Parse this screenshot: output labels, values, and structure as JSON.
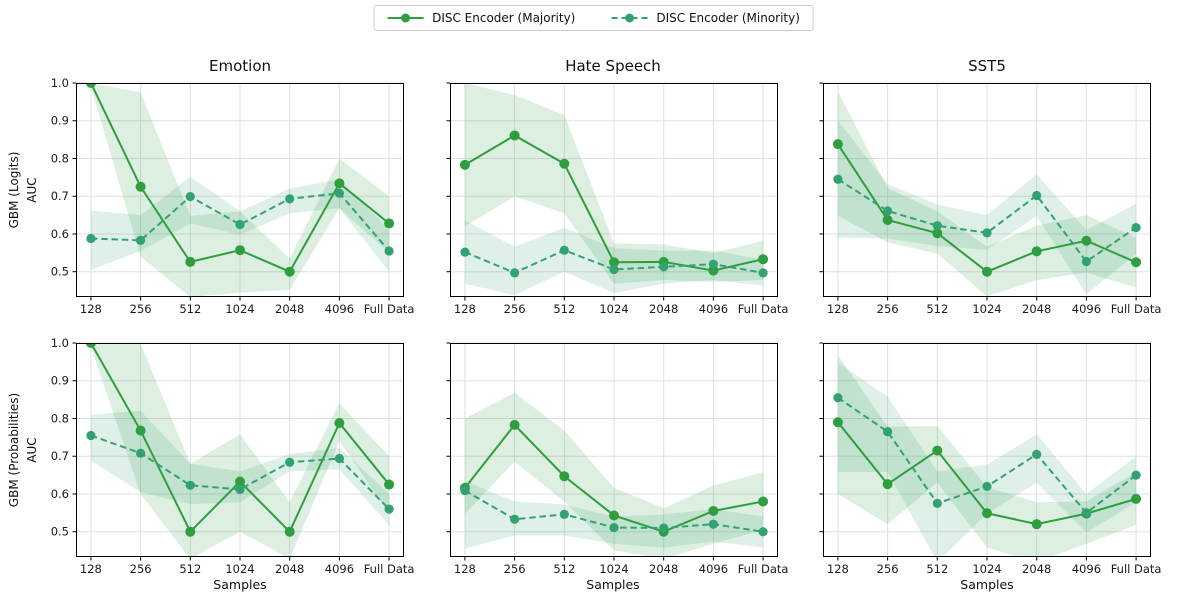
{
  "figure": {
    "legend": {
      "items": [
        {
          "label": "DISC Encoder (Majority)",
          "color": "#2e9e3e",
          "style": "solid"
        },
        {
          "label": "DISC Encoder (Minority)",
          "color": "#33a273",
          "style": "dashed"
        }
      ]
    },
    "col_titles": [
      "Emotion",
      "Hate Speech",
      "SST5"
    ],
    "rows": [
      {
        "ylabel_line1": "GBM (Logits)",
        "ylabel_line2": "AUC"
      },
      {
        "ylabel_line1": "GBM (Probabilities)",
        "ylabel_line2": "AUC"
      }
    ],
    "axis": {
      "x_ticklabels": [
        "128",
        "256",
        "512",
        "1024",
        "2048",
        "4096",
        "Full Data"
      ],
      "y_ticks": [
        0.5,
        0.6,
        0.7,
        0.8,
        0.9,
        1.0
      ],
      "ylim": [
        0.433,
        1.0
      ],
      "xlabel": "Samples",
      "grid_color": "#e0e0e0",
      "spine_color": "#000000",
      "band_opacity": 0.16
    }
  },
  "chart_data": [
    {
      "id": "emotion-logits",
      "type": "line",
      "row": 0,
      "col": 0,
      "title": "Emotion",
      "ylabel": "GBM (Logits) AUC",
      "categories": [
        "128",
        "256",
        "512",
        "1024",
        "2048",
        "4096",
        "Full Data"
      ],
      "ylim": [
        0.433,
        1.0
      ],
      "grid": true,
      "legend_position": "top-center",
      "series": [
        {
          "name": "DISC Encoder (Majority)",
          "color": "#2e9e3e",
          "dash": false,
          "values": [
            1.0,
            0.725,
            0.526,
            0.557,
            0.5,
            0.734,
            0.628
          ],
          "band_lo": [
            0.99,
            0.54,
            0.433,
            0.445,
            0.452,
            0.668,
            0.55
          ],
          "band_hi": [
            1.0,
            0.975,
            0.648,
            0.66,
            0.535,
            0.8,
            0.7
          ]
        },
        {
          "name": "DISC Encoder (Minority)",
          "color": "#33a273",
          "dash": true,
          "values": [
            0.588,
            0.583,
            0.699,
            0.625,
            0.693,
            0.708,
            0.555
          ],
          "band_lo": [
            0.505,
            0.555,
            0.628,
            0.598,
            0.655,
            0.668,
            0.5
          ],
          "band_hi": [
            0.662,
            0.65,
            0.752,
            0.66,
            0.72,
            0.745,
            0.61
          ]
        }
      ]
    },
    {
      "id": "hatespeech-logits",
      "type": "line",
      "row": 0,
      "col": 1,
      "title": "Hate Speech",
      "ylabel": "GBM (Logits) AUC",
      "categories": [
        "128",
        "256",
        "512",
        "1024",
        "2048",
        "4096",
        "Full Data"
      ],
      "ylim": [
        0.433,
        1.0
      ],
      "grid": true,
      "legend_position": "top-center",
      "series": [
        {
          "name": "DISC Encoder (Majority)",
          "color": "#2e9e3e",
          "dash": false,
          "values": [
            0.783,
            0.861,
            0.786,
            0.525,
            0.526,
            0.503,
            0.533
          ],
          "band_lo": [
            0.62,
            0.7,
            0.655,
            0.468,
            0.478,
            0.473,
            0.478
          ],
          "band_hi": [
            1.0,
            0.968,
            0.915,
            0.575,
            0.572,
            0.55,
            0.582
          ]
        },
        {
          "name": "DISC Encoder (Minority)",
          "color": "#33a273",
          "dash": true,
          "values": [
            0.552,
            0.497,
            0.557,
            0.506,
            0.513,
            0.52,
            0.497
          ],
          "band_lo": [
            0.468,
            0.438,
            0.5,
            0.444,
            0.468,
            0.478,
            0.463
          ],
          "band_hi": [
            0.636,
            0.566,
            0.616,
            0.562,
            0.556,
            0.556,
            0.532
          ]
        }
      ]
    },
    {
      "id": "sst5-logits",
      "type": "line",
      "row": 0,
      "col": 2,
      "title": "SST5",
      "ylabel": "GBM (Logits) AUC",
      "categories": [
        "128",
        "256",
        "512",
        "1024",
        "2048",
        "4096",
        "Full Data"
      ],
      "ylim": [
        0.433,
        1.0
      ],
      "grid": true,
      "legend_position": "top-center",
      "series": [
        {
          "name": "DISC Encoder (Majority)",
          "color": "#2e9e3e",
          "dash": false,
          "values": [
            0.838,
            0.637,
            0.602,
            0.5,
            0.554,
            0.582,
            0.525
          ],
          "band_lo": [
            0.648,
            0.578,
            0.548,
            0.435,
            0.478,
            0.498,
            0.458
          ],
          "band_hi": [
            0.978,
            0.722,
            0.66,
            0.566,
            0.622,
            0.65,
            0.59
          ]
        },
        {
          "name": "DISC Encoder (Minority)",
          "color": "#33a273",
          "dash": true,
          "values": [
            0.745,
            0.661,
            0.622,
            0.603,
            0.702,
            0.527,
            0.617
          ],
          "band_lo": [
            0.59,
            0.588,
            0.568,
            0.558,
            0.648,
            0.44,
            0.548
          ],
          "band_hi": [
            0.9,
            0.732,
            0.678,
            0.65,
            0.758,
            0.61,
            0.68
          ]
        }
      ]
    },
    {
      "id": "emotion-probabilities",
      "type": "line",
      "row": 1,
      "col": 0,
      "title": "Emotion",
      "ylabel": "GBM (Probabilities) AUC",
      "xlabel": "Samples",
      "categories": [
        "128",
        "256",
        "512",
        "1024",
        "2048",
        "4096",
        "Full Data"
      ],
      "ylim": [
        0.433,
        1.0
      ],
      "grid": true,
      "legend_position": "top-center",
      "series": [
        {
          "name": "DISC Encoder (Majority)",
          "color": "#2e9e3e",
          "dash": false,
          "values": [
            1.0,
            0.768,
            0.5,
            0.633,
            0.5,
            0.788,
            0.625
          ],
          "band_lo": [
            0.99,
            0.6,
            0.428,
            0.5,
            0.428,
            0.74,
            0.548
          ],
          "band_hi": [
            1.0,
            0.998,
            0.68,
            0.758,
            0.578,
            0.84,
            0.7
          ]
        },
        {
          "name": "DISC Encoder (Minority)",
          "color": "#33a273",
          "dash": true,
          "values": [
            0.755,
            0.708,
            0.623,
            0.612,
            0.684,
            0.694,
            0.56
          ],
          "band_lo": [
            0.688,
            0.605,
            0.573,
            0.578,
            0.66,
            0.665,
            0.518
          ],
          "band_hi": [
            0.81,
            0.82,
            0.68,
            0.66,
            0.706,
            0.722,
            0.6
          ]
        }
      ]
    },
    {
      "id": "hatespeech-probabilities",
      "type": "line",
      "row": 1,
      "col": 1,
      "title": "Hate Speech",
      "ylabel": "GBM (Probabilities) AUC",
      "xlabel": "Samples",
      "categories": [
        "128",
        "256",
        "512",
        "1024",
        "2048",
        "4096",
        "Full Data"
      ],
      "ylim": [
        0.433,
        1.0
      ],
      "grid": true,
      "legend_position": "top-center",
      "series": [
        {
          "name": "DISC Encoder (Majority)",
          "color": "#2e9e3e",
          "dash": false,
          "values": [
            0.616,
            0.783,
            0.647,
            0.543,
            0.5,
            0.555,
            0.58
          ],
          "band_lo": [
            0.548,
            0.686,
            0.58,
            0.451,
            0.428,
            0.468,
            0.505
          ],
          "band_hi": [
            0.8,
            0.868,
            0.768,
            0.616,
            0.562,
            0.622,
            0.658
          ]
        },
        {
          "name": "DISC Encoder (Minority)",
          "color": "#33a273",
          "dash": true,
          "values": [
            0.609,
            0.533,
            0.546,
            0.511,
            0.51,
            0.52,
            0.5
          ],
          "band_lo": [
            0.455,
            0.49,
            0.49,
            0.468,
            0.458,
            0.474,
            0.458
          ],
          "band_hi": [
            0.634,
            0.58,
            0.572,
            0.54,
            0.546,
            0.56,
            0.54
          ]
        }
      ]
    },
    {
      "id": "sst5-probabilities",
      "type": "line",
      "row": 1,
      "col": 2,
      "title": "SST5",
      "ylabel": "GBM (Probabilities) AUC",
      "xlabel": "Samples",
      "categories": [
        "128",
        "256",
        "512",
        "1024",
        "2048",
        "4096",
        "Full Data"
      ],
      "ylim": [
        0.433,
        1.0
      ],
      "grid": true,
      "legend_position": "top-center",
      "series": [
        {
          "name": "DISC Encoder (Majority)",
          "color": "#2e9e3e",
          "dash": false,
          "values": [
            0.79,
            0.626,
            0.715,
            0.549,
            0.52,
            0.548,
            0.587
          ],
          "band_lo": [
            0.6,
            0.52,
            0.63,
            0.458,
            0.42,
            0.468,
            0.518
          ],
          "band_hi": [
            0.968,
            0.778,
            0.78,
            0.618,
            0.578,
            0.58,
            0.658
          ]
        },
        {
          "name": "DISC Encoder (Minority)",
          "color": "#33a273",
          "dash": true,
          "values": [
            0.855,
            0.765,
            0.575,
            0.62,
            0.705,
            0.55,
            0.65
          ],
          "band_lo": [
            0.658,
            0.658,
            0.42,
            0.548,
            0.63,
            0.498,
            0.578
          ],
          "band_hi": [
            0.948,
            0.858,
            0.66,
            0.678,
            0.758,
            0.6,
            0.7
          ]
        }
      ]
    }
  ]
}
